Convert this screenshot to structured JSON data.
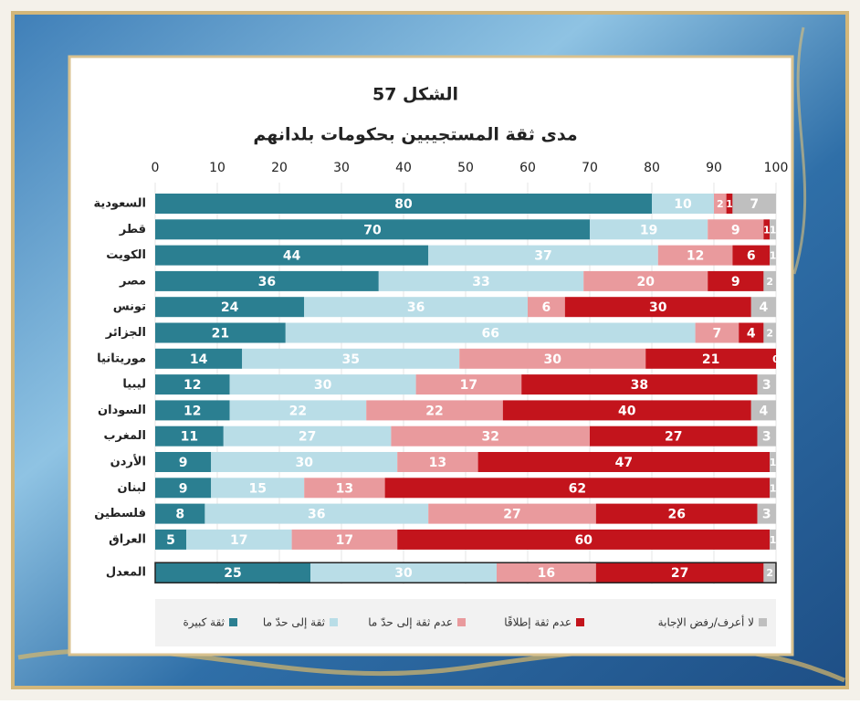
{
  "chart_data": {
    "type": "stacked_barh",
    "title": "الشكل 57",
    "subtitle": "مدى ثقة المستجيبين بحكومات بلدانهم",
    "categories": [
      "السعودية",
      "قطر",
      "الكويت",
      "مصر",
      "تونس",
      "الجزائر",
      "موريتانيا",
      "ليبيا",
      "السودان",
      "المغرب",
      "الأردن",
      "لبنان",
      "فلسطين",
      "العراق",
      "المعدل"
    ],
    "series": [
      {
        "name": "ثقة كبيرة",
        "color": "#2b7f91",
        "values": [
          80,
          70,
          44,
          36,
          24,
          21,
          14,
          12,
          12,
          11,
          9,
          9,
          8,
          5,
          25
        ]
      },
      {
        "name": "ثقة إلى حدّ ما",
        "color": "#b9dde7",
        "values": [
          10,
          19,
          37,
          33,
          36,
          66,
          35,
          30,
          22,
          27,
          30,
          15,
          36,
          17,
          30
        ]
      },
      {
        "name": "عدم ثقة إلى حدّ ما",
        "color": "#e99a9d",
        "values": [
          2,
          9,
          12,
          20,
          6,
          7,
          30,
          17,
          22,
          32,
          13,
          13,
          27,
          17,
          16
        ]
      },
      {
        "name": "عدم ثقة إطلاقًا",
        "color": "#c3141c",
        "values": [
          1,
          1,
          6,
          9,
          30,
          4,
          21,
          38,
          40,
          27,
          47,
          62,
          26,
          60,
          27
        ]
      },
      {
        "name": "لا أعرف/رفض الإجابة",
        "color": "#bfbfbf",
        "values": [
          7,
          1,
          1,
          2,
          4,
          2,
          0,
          3,
          4,
          3,
          1,
          1,
          3,
          1,
          2
        ]
      }
    ],
    "xlim": [
      0,
      100
    ],
    "xticks": [
      0,
      10,
      20,
      30,
      40,
      50,
      60,
      70,
      80,
      90,
      100
    ],
    "grid": true,
    "legend": "bottom"
  }
}
